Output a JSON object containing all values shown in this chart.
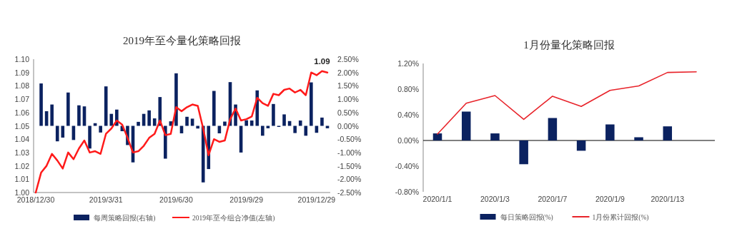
{
  "chart_data": [
    {
      "type": "bar",
      "title": "2019年至今量化策略回报",
      "legend": "bottom",
      "grid": false,
      "categories": [
        "2018/12/30",
        null,
        null,
        null,
        null,
        null,
        null,
        null,
        null,
        null,
        null,
        null,
        null,
        "2019/3/31",
        null,
        null,
        null,
        null,
        null,
        null,
        null,
        null,
        null,
        null,
        null,
        null,
        "2019/6/30",
        null,
        null,
        null,
        null,
        null,
        null,
        null,
        null,
        null,
        null,
        null,
        null,
        "2019/9/29",
        null,
        null,
        null,
        null,
        null,
        null,
        null,
        null,
        null,
        null,
        null,
        null,
        "2019/12/29",
        null,
        null
      ],
      "ylim": [
        1.0,
        1.1
      ],
      "yticks": [
        {
          "value": 1.0,
          "label": "1.00"
        },
        {
          "value": 1.01,
          "label": "1.01"
        },
        {
          "value": 1.02,
          "label": "1.02"
        },
        {
          "value": 1.03,
          "label": "1.03"
        },
        {
          "value": 1.04,
          "label": "1.04"
        },
        {
          "value": 1.05,
          "label": "1.05"
        },
        {
          "value": 1.06,
          "label": "1.06"
        },
        {
          "value": 1.07,
          "label": "1.07"
        },
        {
          "value": 1.08,
          "label": "1.08"
        },
        {
          "value": 1.09,
          "label": "1.09"
        },
        {
          "value": 1.1,
          "label": "1.10"
        }
      ],
      "y2lim": [
        -2.5,
        2.5
      ],
      "y2ticks": [
        {
          "value": -2.5,
          "label": "-2.50%"
        },
        {
          "value": -2.0,
          "label": "-2.00%"
        },
        {
          "value": -1.5,
          "label": "-1.50%"
        },
        {
          "value": -1.0,
          "label": "-1.00%"
        },
        {
          "value": -0.5,
          "label": "-0.50%"
        },
        {
          "value": 0,
          "label": "0.00%"
        },
        {
          "value": 0.5,
          "label": "0.50%"
        },
        {
          "value": 1.0,
          "label": "1.00%"
        },
        {
          "value": 1.5,
          "label": "1.50%"
        },
        {
          "value": 2.0,
          "label": "2.00%"
        },
        {
          "value": 2.5,
          "label": "2.50%"
        }
      ],
      "annotations": [
        {
          "text": "1.09",
          "y": 1.09
        }
      ],
      "series": [
        {
          "name": "每周策略回报(右轴)",
          "axis": "y2",
          "color": "#0b2260",
          "values": [
            null,
            1.59,
            0.55,
            0.8,
            -0.58,
            -0.44,
            1.25,
            -0.53,
            0.77,
            0.73,
            -0.85,
            0.1,
            -0.25,
            1.48,
            0.45,
            0.61,
            -0.2,
            -0.72,
            -1.37,
            0.15,
            0.45,
            0.58,
            0.28,
            1.08,
            -1.23,
            0.17,
            1.97,
            -0.28,
            0.34,
            0.27,
            -0.1,
            -2.12,
            -1.62,
            1.31,
            -0.28,
            0.16,
            1.64,
            0.8,
            -1.0,
            0.21,
            0.2,
            1.33,
            -0.37,
            -0.09,
            0.82,
            -0.04,
            0.43,
            0.18,
            -0.27,
            0.2,
            -0.37,
            1.63,
            -0.26,
            0.31,
            -0.09
          ]
        },
        {
          "name": "2019年至今组合净值(左轴)",
          "type": "line",
          "color": "#ff1a1a",
          "values": [
            1.0,
            1.015,
            1.02,
            1.029,
            1.024,
            1.018,
            1.03,
            1.025,
            1.033,
            1.039,
            1.03,
            1.031,
            1.029,
            1.044,
            1.048,
            1.054,
            1.051,
            1.041,
            1.03,
            1.031,
            1.035,
            1.041,
            1.044,
            1.054,
            1.043,
            1.044,
            1.064,
            1.061,
            1.064,
            1.066,
            1.065,
            1.048,
            1.028,
            1.04,
            1.038,
            1.039,
            1.055,
            1.063,
            1.054,
            1.055,
            1.057,
            1.071,
            1.067,
            1.065,
            1.074,
            1.073,
            1.077,
            1.078,
            1.075,
            1.077,
            1.073,
            1.09,
            1.088,
            1.091,
            1.09
          ]
        }
      ]
    },
    {
      "type": "bar",
      "title": "1月份量化策略回报",
      "legend": "bottom",
      "grid": false,
      "categories": [
        "2020/1/1",
        null,
        "2020/1/3",
        null,
        "2020/1/7",
        null,
        "2020/1/9",
        null,
        "2020/1/13",
        null
      ],
      "ylim": [
        -0.8,
        1.2
      ],
      "yticks": [
        {
          "value": -0.8,
          "label": "-0.80%"
        },
        {
          "value": -0.4,
          "label": "-0.40%"
        },
        {
          "value": 0,
          "label": "0.00%"
        },
        {
          "value": 0.4,
          "label": "0.40%"
        },
        {
          "value": 0.8,
          "label": "0.80%"
        },
        {
          "value": 1.2,
          "label": "1.20%"
        }
      ],
      "ref_lines": [
        {
          "axis": "y",
          "value": 0,
          "color": "#000000"
        }
      ],
      "series": [
        {
          "name": "每日策略回报(%)",
          "color": "#0b2260",
          "values": [
            0.11,
            0.45,
            0.11,
            -0.37,
            0.35,
            -0.16,
            0.25,
            0.05,
            0.22,
            null
          ]
        },
        {
          "name": "1月份累计回报(%)",
          "type": "line",
          "color": "#e8232a",
          "values": [
            0.1,
            0.58,
            0.7,
            0.33,
            0.69,
            0.53,
            0.78,
            0.85,
            1.06,
            1.07
          ]
        }
      ]
    }
  ]
}
